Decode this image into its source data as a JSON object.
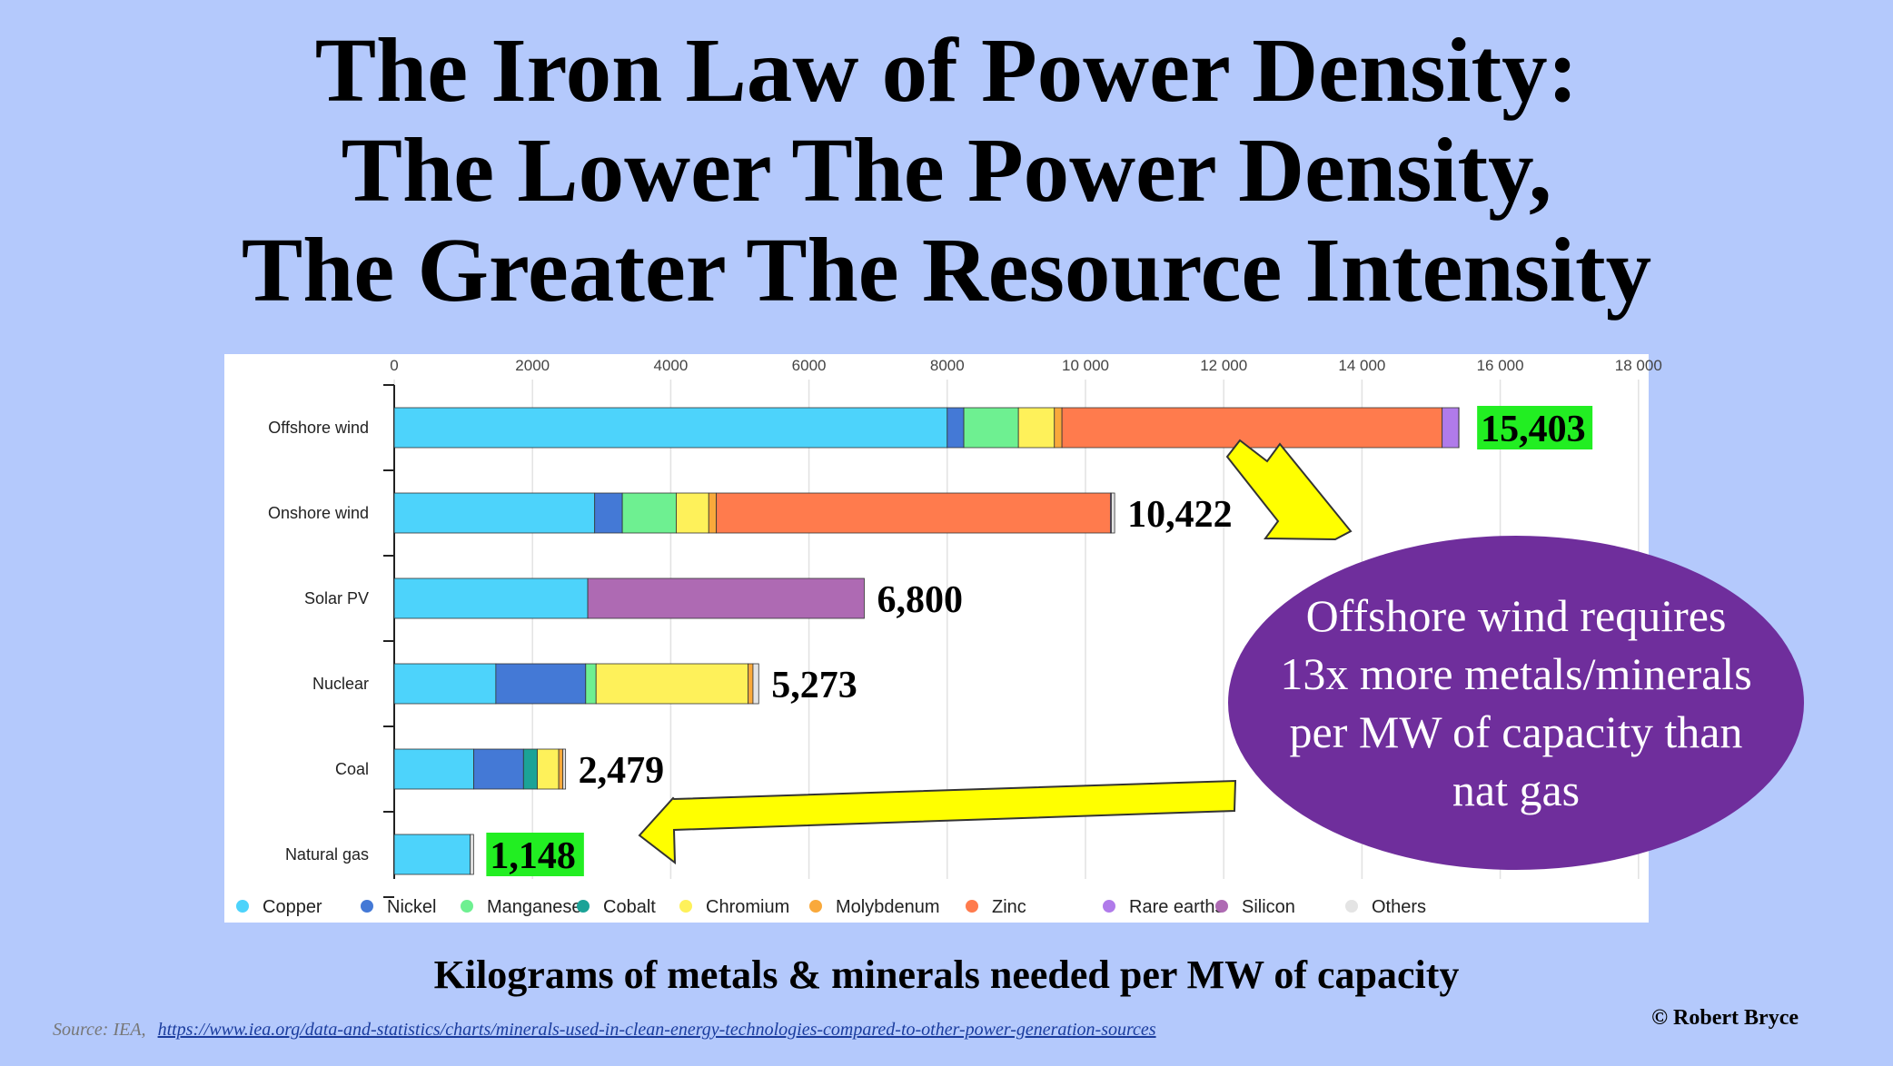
{
  "title": {
    "line1": "The Iron Law of Power Density:",
    "line2": "The Lower The Power Density,",
    "line3": "The Greater The Resource Intensity"
  },
  "caption": "Kilograms of metals & minerals needed per MW of capacity",
  "copyright": "© Robert Bryce",
  "source": {
    "label": "Source: IEA,",
    "link": "https://www.iea.org/data-and-statistics/charts/minerals-used-in-clean-energy-technologies-compared-to-other-power-generation-sources"
  },
  "callout": "Offshore wind requires 13x more metals/minerals per MW of capacity than nat gas",
  "colors": {
    "background": "#b4c9fc",
    "callout": "#6f2e9c",
    "arrow": "#ffff00",
    "highlight": "#22ee22"
  },
  "chart_data": {
    "type": "bar",
    "orientation": "horizontal",
    "stacked": true,
    "categories": [
      "Offshore wind",
      "Onshore wind",
      "Solar PV",
      "Nuclear",
      "Coal",
      "Natural gas"
    ],
    "xlim": [
      0,
      18000
    ],
    "xticks": [
      0,
      2000,
      4000,
      6000,
      8000,
      10000,
      12000,
      14000,
      16000,
      18000
    ],
    "xtick_labels": [
      "0",
      "2000",
      "4000",
      "6000",
      "8000",
      "10 000",
      "12 000",
      "14 000",
      "16 000",
      "18 000"
    ],
    "grid": true,
    "legend_position": "bottom",
    "series": [
      {
        "name": "Copper",
        "color": "#4dd3fb",
        "values": [
          8000,
          2900,
          2800,
          1470,
          1150,
          1100
        ]
      },
      {
        "name": "Nickel",
        "color": "#4479d6",
        "values": [
          240,
          400,
          0,
          1300,
          720,
          0
        ]
      },
      {
        "name": "Manganese",
        "color": "#6ef091",
        "values": [
          790,
          780,
          0,
          150,
          0,
          0
        ]
      },
      {
        "name": "Cobalt",
        "color": "#1ba397",
        "values": [
          0,
          0,
          0,
          0,
          200,
          0
        ]
      },
      {
        "name": "Chromium",
        "color": "#fef15a",
        "values": [
          520,
          470,
          0,
          2200,
          310,
          0
        ]
      },
      {
        "name": "Molybdenum",
        "color": "#f9a93b",
        "values": [
          110,
          110,
          0,
          70,
          60,
          0
        ]
      },
      {
        "name": "Zinc",
        "color": "#ff7b4d",
        "values": [
          5500,
          5700,
          0,
          0,
          0,
          0
        ]
      },
      {
        "name": "Rare earths",
        "color": "#b07bea",
        "values": [
          240,
          14,
          0,
          0,
          0,
          0
        ]
      },
      {
        "name": "Silicon",
        "color": "#ae6ab3",
        "values": [
          0,
          0,
          4000,
          0,
          0,
          0
        ]
      },
      {
        "name": "Others",
        "color": "#e4e4e4",
        "values": [
          3,
          48,
          0,
          83,
          39,
          48
        ]
      }
    ],
    "totals": [
      "15,403",
      "10,422",
      "6,800",
      "5,273",
      "2,479",
      "1,148"
    ],
    "highlighted_totals": [
      0,
      5
    ]
  }
}
